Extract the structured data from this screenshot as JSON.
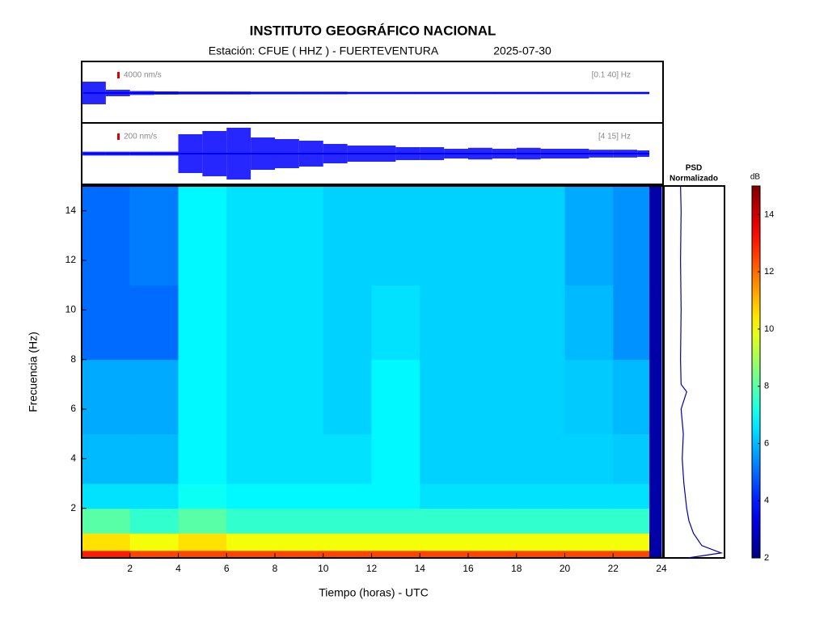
{
  "chart_data": {
    "type": "spectrogram",
    "title": "INSTITUTO GEOGRÁFICO NACIONAL",
    "subtitle": "Estación:  CFUE ( HHZ ) - FUERTEVENTURA",
    "date": "2025-07-30",
    "xlabel": "Tiempo (horas) - UTC",
    "ylabel": "Frecuencia  (Hz)",
    "xlim": [
      0,
      24
    ],
    "xticks": [
      2,
      4,
      6,
      8,
      10,
      12,
      14,
      16,
      18,
      20,
      22,
      24
    ],
    "ylim": [
      0,
      15
    ],
    "yticks": [
      2,
      4,
      6,
      8,
      10,
      12,
      14
    ],
    "time_edges": [
      0,
      2,
      4,
      6,
      8,
      10,
      12,
      14,
      16,
      18,
      20,
      22,
      23.5,
      24
    ],
    "freq_edges": [
      0,
      0.3,
      1,
      2,
      3,
      5,
      8,
      11,
      15
    ],
    "z": [
      [
        13,
        12.5,
        12.5,
        12.5,
        12.5,
        12.5,
        12.5,
        12.5,
        12.5,
        12.5,
        12.5,
        12.5,
        2.5
      ],
      [
        10.5,
        10,
        10.5,
        10,
        10,
        10,
        10,
        10,
        10,
        10,
        10,
        10,
        2.5
      ],
      [
        8,
        7.5,
        8,
        7.5,
        7.5,
        7.5,
        7.5,
        7.5,
        7.5,
        7.5,
        7.5,
        7.5,
        2.5
      ],
      [
        6.5,
        6.5,
        7,
        6.8,
        6.8,
        6.8,
        6.8,
        6.5,
        6.5,
        6.5,
        6.5,
        6.5,
        2.5
      ],
      [
        6,
        6,
        6.8,
        6.5,
        6.5,
        6.5,
        6.8,
        6.3,
        6.3,
        6.3,
        6.3,
        6.2,
        2.5
      ],
      [
        5.8,
        5.8,
        6.8,
        6.5,
        6.5,
        6.3,
        6.8,
        6.3,
        6.3,
        6.3,
        6.2,
        6,
        2.5
      ],
      [
        5,
        5,
        6.8,
        6.5,
        6.5,
        6.3,
        6.5,
        6.3,
        6.3,
        6.3,
        6,
        5.5,
        2.5
      ],
      [
        5,
        5.2,
        6.8,
        6.5,
        6.5,
        6.3,
        6.3,
        6.3,
        6.3,
        6.3,
        5.8,
        5.5,
        2.5
      ]
    ],
    "traces": [
      {
        "scale": {
          "value": 4000,
          "label": "4000 nm/s"
        },
        "band": "[0.1 40] Hz",
        "color": "#0000ff",
        "envelope": [
          7000,
          2000,
          1200,
          1000,
          900,
          900,
          900,
          800,
          800,
          800,
          800,
          700,
          700,
          700,
          700,
          700,
          700,
          700,
          700,
          700,
          700,
          700,
          700,
          700
        ]
      },
      {
        "scale": {
          "value": 200,
          "label": "200 nm/s"
        },
        "band": "[4 15] Hz",
        "color": "#0000ff",
        "envelope": [
          60,
          60,
          60,
          60,
          600,
          700,
          800,
          500,
          450,
          400,
          300,
          250,
          250,
          200,
          200,
          150,
          180,
          150,
          180,
          150,
          150,
          120,
          120,
          100
        ]
      }
    ],
    "psd": {
      "title": [
        "PSD",
        "Normalizado"
      ],
      "color": "#0000aa",
      "freqs": [
        0,
        0.2,
        0.5,
        1,
        1.5,
        2,
        3,
        4,
        5,
        6,
        6.7,
        7,
        8,
        10,
        12,
        14,
        15
      ],
      "values": [
        0.4,
        1,
        0.65,
        0.5,
        0.42,
        0.38,
        0.33,
        0.3,
        0.32,
        0.28,
        0.38,
        0.28,
        0.27,
        0.28,
        0.27,
        0.28,
        0.27
      ]
    },
    "colorbar": {
      "label": "dB",
      "lim": [
        2,
        15
      ],
      "ticks": [
        2,
        4,
        6,
        8,
        10,
        12,
        14
      ]
    }
  }
}
